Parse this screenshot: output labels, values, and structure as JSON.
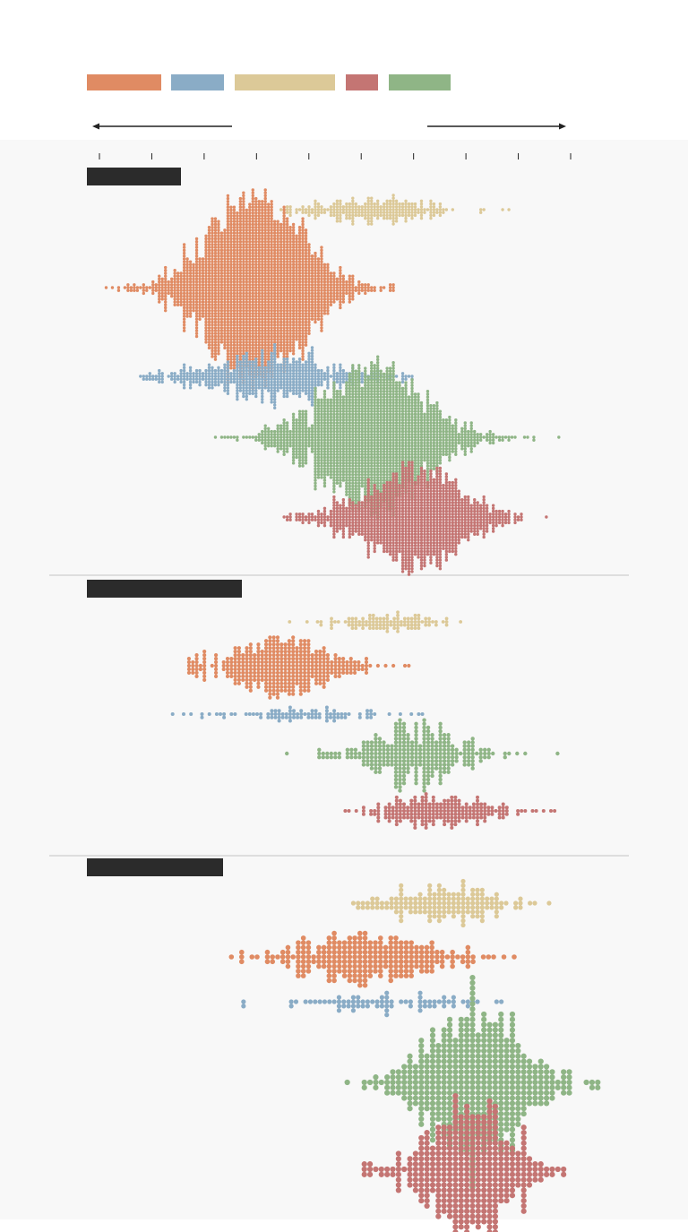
{
  "colors": {
    "orange": "#e08b63",
    "blue": "#8aacc6",
    "sand": "#dcc998",
    "red": "#c47573",
    "green": "#8fb586",
    "panel_bg": "#f8f8f8",
    "label_bar": "#2b2b2b",
    "divider": "#cfcfcf",
    "axis": "#222222"
  },
  "legend": {
    "swatches": [
      {
        "key": "orange"
      },
      {
        "key": "blue"
      },
      {
        "key": "sand"
      },
      {
        "key": "red"
      },
      {
        "key": "green"
      }
    ]
  },
  "chart_data": {
    "type": "beeswarm",
    "x_axis": {
      "ticks": 10,
      "arrows": "left-and-right",
      "labels_visible": false
    },
    "grid": false,
    "legend_placement": "top",
    "panels": [
      {
        "label": "",
        "series": [
          {
            "key": "sand",
            "count": 260,
            "min": 3.4,
            "max": 8.2,
            "center": 5.2,
            "spread": 0.9,
            "dot": 1.7
          },
          {
            "key": "orange",
            "count": 2300,
            "min": 0.1,
            "max": 7.9,
            "center": 3.0,
            "spread": 0.85,
            "dot": 1.7
          },
          {
            "key": "blue",
            "count": 600,
            "min": 0.8,
            "max": 6.0,
            "center": 3.3,
            "spread": 1.1,
            "dot": 1.7
          },
          {
            "key": "green",
            "count": 1900,
            "min": 2.1,
            "max": 8.8,
            "center": 5.2,
            "spread": 0.95,
            "dot": 1.7
          },
          {
            "key": "red",
            "count": 1200,
            "min": 3.5,
            "max": 9.0,
            "center": 6.0,
            "spread": 0.85,
            "dot": 1.7
          }
        ]
      },
      {
        "label": "",
        "series": [
          {
            "key": "sand",
            "count": 110,
            "min": 3.0,
            "max": 7.4,
            "center": 5.5,
            "spread": 0.6,
            "dot": 1.9
          },
          {
            "key": "orange",
            "count": 420,
            "min": 1.7,
            "max": 7.8,
            "center": 3.5,
            "spread": 0.8,
            "dot": 2.1
          },
          {
            "key": "blue",
            "count": 90,
            "min": 1.4,
            "max": 6.5,
            "center": 4.0,
            "spread": 1.1,
            "dot": 2.0
          },
          {
            "key": "green",
            "count": 330,
            "min": 3.5,
            "max": 9.0,
            "center": 6.0,
            "spread": 0.8,
            "dot": 2.2
          },
          {
            "key": "red",
            "count": 230,
            "min": 3.9,
            "max": 8.8,
            "center": 6.5,
            "spread": 0.8,
            "dot": 2.0
          }
        ]
      },
      {
        "label": "",
        "series": [
          {
            "key": "sand",
            "count": 160,
            "min": 4.8,
            "max": 9.1,
            "center": 6.6,
            "spread": 0.8,
            "dot": 2.6
          },
          {
            "key": "orange",
            "count": 260,
            "min": 2.0,
            "max": 8.0,
            "center": 5.0,
            "spread": 1.0,
            "dot": 2.8
          },
          {
            "key": "blue",
            "count": 75,
            "min": 2.7,
            "max": 7.8,
            "center": 5.5,
            "spread": 1.1,
            "dot": 2.6
          },
          {
            "key": "green",
            "count": 520,
            "min": 4.2,
            "max": 9.8,
            "center": 7.2,
            "spread": 0.85,
            "dot": 3.1
          },
          {
            "key": "red",
            "count": 400,
            "min": 5.0,
            "max": 9.4,
            "center": 7.1,
            "spread": 0.7,
            "dot": 3.1
          }
        ]
      }
    ]
  }
}
